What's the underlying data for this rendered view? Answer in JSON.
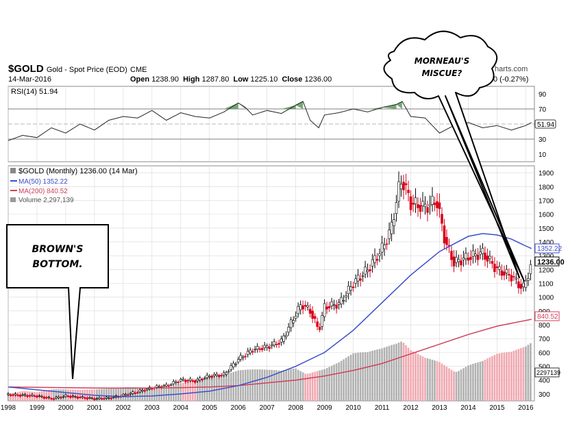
{
  "header": {
    "ticker": "$GOLD",
    "description": "Gold - Spot Price (EOD)",
    "exchange": "CME",
    "date": "14-Mar-2016",
    "open_label": "Open",
    "open": "1238.90",
    "high_label": "High",
    "high": "1287.80",
    "low_label": "Low",
    "low": "1225.10",
    "close_label": "Close",
    "close": "1236.00",
    "change": "0 (-0.27%)",
    "site": "harts.com"
  },
  "callouts": {
    "left": [
      "BROWN'S",
      "BOTTOM."
    ],
    "right": [
      "MORNEAU'S",
      "MISCUE?"
    ]
  },
  "colors": {
    "price_up": "#000000",
    "price_down": "#d9001b",
    "ma50": "#3b4ec9",
    "ma200": "#d0405a",
    "rsi_fill": "#5a9a5a",
    "volume_up": "#b0b0b0",
    "volume_down": "#f0a8b0",
    "grid": "#d8d8d8"
  },
  "chart_data": [
    {
      "type": "line",
      "title": "RSI(14) 51.94",
      "ylim": [
        0,
        100
      ],
      "yticks": [
        10,
        30,
        50,
        70,
        90
      ],
      "reference_lines": [
        30,
        70
      ],
      "last_value": "51.94",
      "x": [
        1998.0,
        1998.5,
        1999.0,
        1999.5,
        2000.0,
        2000.5,
        2001.0,
        2001.5,
        2002.0,
        2002.5,
        2003.0,
        2003.5,
        2004.0,
        2004.5,
        2005.0,
        2005.5,
        2006.0,
        2006.25,
        2006.5,
        2007.0,
        2007.5,
        2008.0,
        2008.25,
        2008.5,
        2008.8,
        2009.0,
        2009.5,
        2010.0,
        2010.5,
        2011.0,
        2011.5,
        2011.7,
        2012.0,
        2012.5,
        2013.0,
        2013.5,
        2014.0,
        2014.5,
        2015.0,
        2015.5,
        2016.0,
        2016.2
      ],
      "values": [
        28,
        35,
        32,
        45,
        38,
        50,
        42,
        55,
        60,
        58,
        68,
        55,
        65,
        60,
        58,
        66,
        78,
        72,
        62,
        68,
        64,
        75,
        80,
        55,
        45,
        62,
        65,
        70,
        66,
        72,
        76,
        80,
        60,
        58,
        38,
        48,
        52,
        45,
        48,
        42,
        48,
        52
      ]
    },
    {
      "type": "bar",
      "title": "$GOLD (Monthly) 1236.00 (14 Mar)",
      "ylim": [
        250,
        1950
      ],
      "yticks": [
        300,
        400,
        500,
        600,
        700,
        800,
        900,
        1000,
        1100,
        1200,
        1300,
        1400,
        1500,
        1600,
        1700,
        1800,
        1900
      ],
      "xticks": [
        1998,
        1999,
        2000,
        2001,
        2002,
        2003,
        2004,
        2005,
        2006,
        2007,
        2008,
        2009,
        2010,
        2011,
        2012,
        2013,
        2014,
        2015,
        2016
      ],
      "xlim": [
        1998.0,
        2016.3
      ],
      "last_price": "1236.00",
      "series": [
        {
          "name": "$GOLD",
          "kind": "price",
          "x": [
            1998.0,
            1998.5,
            1999.0,
            1999.5,
            2000.0,
            2000.5,
            2001.0,
            2001.5,
            2002.0,
            2002.5,
            2003.0,
            2003.5,
            2004.0,
            2004.5,
            2005.0,
            2005.5,
            2006.0,
            2006.5,
            2007.0,
            2007.5,
            2008.0,
            2008.2,
            2008.5,
            2008.8,
            2009.0,
            2009.5,
            2010.0,
            2010.5,
            2011.0,
            2011.3,
            2011.6,
            2011.7,
            2012.0,
            2012.5,
            2012.9,
            2013.2,
            2013.5,
            2014.0,
            2014.5,
            2015.0,
            2015.5,
            2015.9,
            2016.0,
            2016.2
          ],
          "values": [
            295,
            290,
            285,
            265,
            285,
            275,
            265,
            270,
            290,
            315,
            345,
            360,
            400,
            395,
            430,
            440,
            550,
            620,
            640,
            680,
            880,
            950,
            900,
            760,
            930,
            950,
            1100,
            1200,
            1350,
            1480,
            1800,
            1850,
            1680,
            1650,
            1700,
            1400,
            1250,
            1290,
            1320,
            1200,
            1150,
            1060,
            1120,
            1236
          ]
        },
        {
          "name": "MA(50) 1352.22",
          "kind": "ma50",
          "last_value": "1352.22",
          "x": [
            1998.0,
            1999.0,
            2000.0,
            2001.0,
            2002.0,
            2003.0,
            2004.0,
            2005.0,
            2006.0,
            2007.0,
            2008.0,
            2009.0,
            2010.0,
            2011.0,
            2012.0,
            2013.0,
            2014.0,
            2014.5,
            2015.0,
            2015.5,
            2016.0,
            2016.2
          ],
          "values": [
            350,
            330,
            310,
            290,
            280,
            285,
            300,
            320,
            360,
            420,
            500,
            600,
            760,
            960,
            1160,
            1330,
            1440,
            1460,
            1450,
            1420,
            1370,
            1352
          ]
        },
        {
          "name": "MA(200) 840.52",
          "kind": "ma200",
          "last_value": "840.52",
          "x": [
            1998.0,
            2000.0,
            2001.0,
            2002.0,
            2003.0,
            2004.0,
            2005.0,
            2006.0,
            2007.0,
            2008.0,
            2009.0,
            2010.0,
            2011.0,
            2012.0,
            2013.0,
            2014.0,
            2015.0,
            2016.2
          ],
          "values": [
            350,
            345,
            343,
            342,
            343,
            345,
            350,
            360,
            380,
            400,
            430,
            470,
            520,
            590,
            660,
            730,
            790,
            840
          ]
        },
        {
          "name": "Volume 2,297,139",
          "kind": "volume",
          "last_value": "2297139",
          "x": [
            1998.0,
            1998.5,
            1999.0,
            1999.5,
            2000.0,
            2000.5,
            2001.0,
            2001.5,
            2002.0,
            2002.5,
            2003.0,
            2003.5,
            2004.0,
            2004.5,
            2005.0,
            2005.5,
            2006.0,
            2006.5,
            2007.0,
            2007.5,
            2008.0,
            2008.5,
            2009.0,
            2009.5,
            2010.0,
            2010.5,
            2011.0,
            2011.5,
            2011.7,
            2012.0,
            2012.5,
            2013.0,
            2013.5,
            2014.0,
            2014.5,
            2015.0,
            2015.5,
            2016.0,
            2016.2
          ],
          "values": [
            0.15,
            0.18,
            0.14,
            0.17,
            0.16,
            0.15,
            0.16,
            0.18,
            0.22,
            0.25,
            0.27,
            0.26,
            0.3,
            0.32,
            0.33,
            0.35,
            0.42,
            0.45,
            0.48,
            0.52,
            0.65,
            0.6,
            0.58,
            0.62,
            0.7,
            0.68,
            0.72,
            0.8,
            0.85,
            0.75,
            0.7,
            0.72,
            0.65,
            0.7,
            0.68,
            0.72,
            0.7,
            0.75,
            0.8
          ]
        }
      ]
    }
  ]
}
